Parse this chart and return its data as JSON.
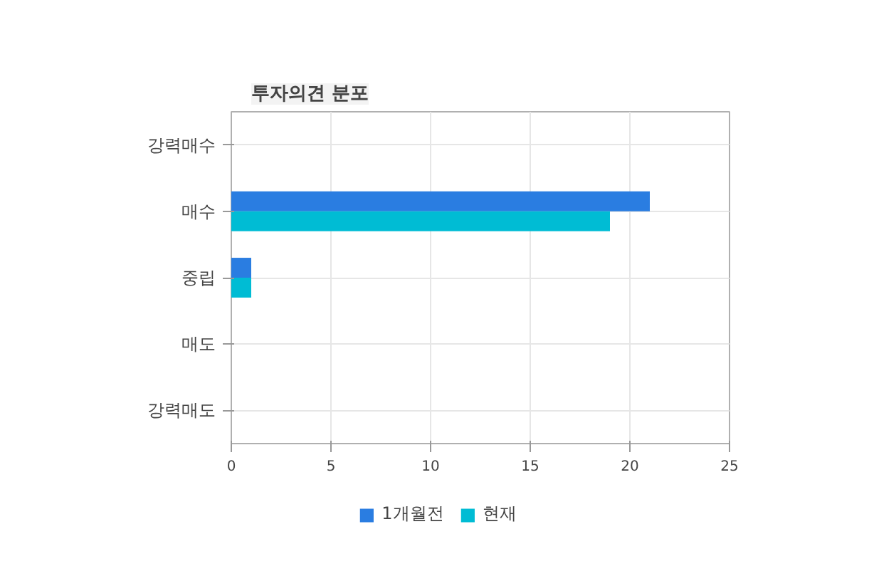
{
  "chart_data": {
    "type": "bar",
    "title": "투자의견 분포",
    "orientation": "horizontal",
    "categories": [
      "강력매수",
      "매수",
      "중립",
      "매도",
      "강력매도"
    ],
    "series": [
      {
        "name": "1개월전",
        "color": "#2a7de1",
        "values": [
          0,
          21,
          1,
          0,
          0
        ]
      },
      {
        "name": "현재",
        "color": "#00bcd4",
        "values": [
          0,
          19,
          1,
          0,
          0
        ]
      }
    ],
    "xlim": [
      0,
      25
    ],
    "xticks": [
      0,
      5,
      10,
      15,
      20,
      25
    ],
    "grid": true,
    "legend": "bottom"
  }
}
